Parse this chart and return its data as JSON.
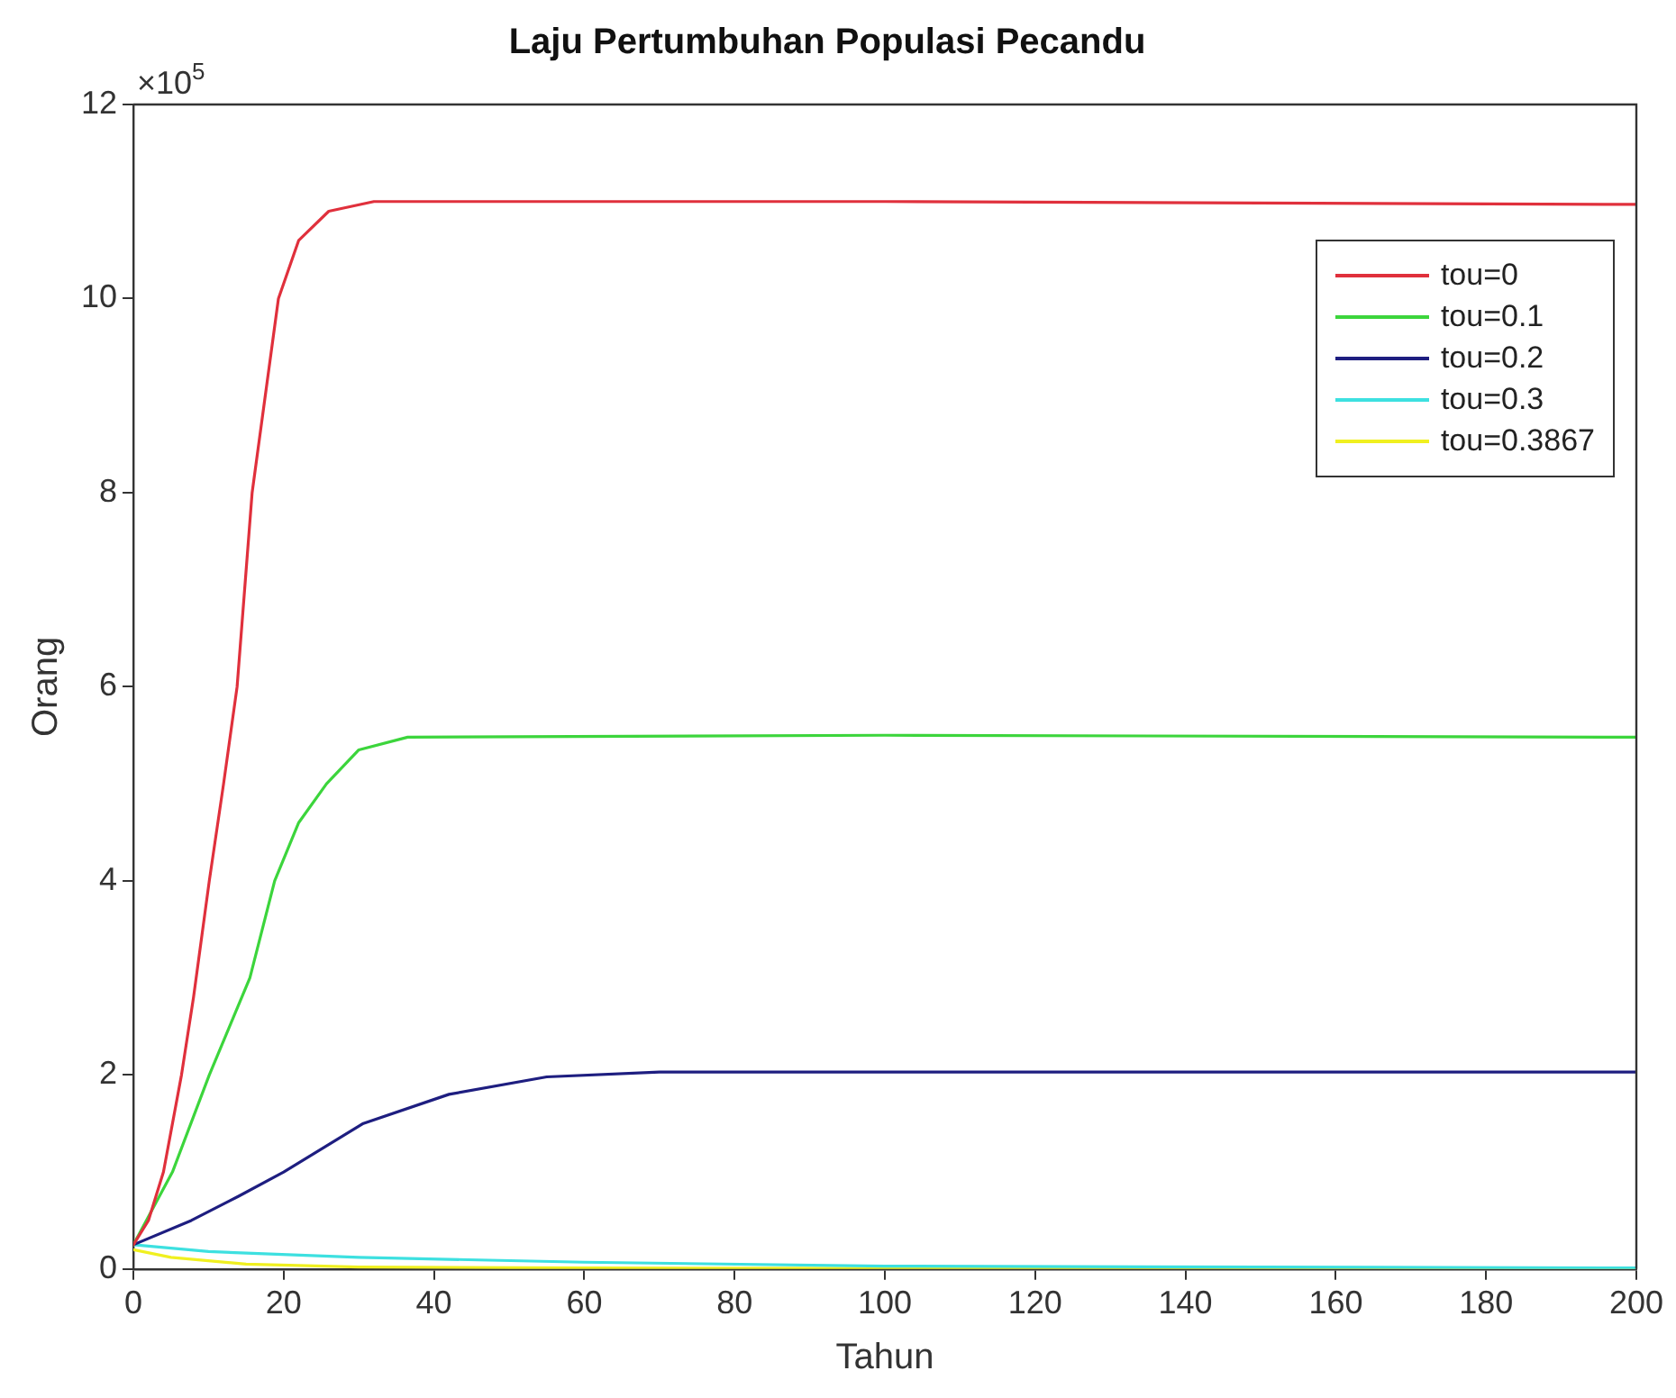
{
  "chart_data": {
    "type": "line",
    "title": "Laju Pertumbuhan Populasi Pecandu",
    "xlabel": "Tahun",
    "ylabel": "Orang",
    "annotations": [
      "×10$^{5}$"
    ],
    "xlim": [
      0,
      200
    ],
    "xticks": [
      0,
      20,
      40,
      60,
      80,
      100,
      120,
      140,
      160,
      180,
      200
    ],
    "ylim": [
      0,
      12
    ],
    "yticks": [
      0,
      2,
      4,
      6,
      8,
      10,
      12
    ],
    "grid": false,
    "legend": "top right",
    "marker": "none",
    "line_style": "solid",
    "series": [
      {
        "name": "tou=0",
        "color": "#e0303c",
        "x": [
          0,
          2,
          4,
          6.4,
          8,
          10.1,
          12,
          13.8,
          15.8,
          19.3,
          22,
          26,
          32,
          100,
          200
        ],
        "values": [
          0.25,
          0.5,
          1,
          2,
          2.8,
          4,
          5,
          6,
          8,
          10,
          10.6,
          10.9,
          11,
          11,
          10.97
        ]
      },
      {
        "name": "tou=0.1",
        "color": "#3cd53c",
        "x": [
          0,
          5.2,
          10.1,
          15.5,
          18.8,
          22,
          25.7,
          30,
          36.5,
          100,
          200
        ],
        "values": [
          0.25,
          1,
          2,
          3,
          4,
          4.6,
          5,
          5.35,
          5.48,
          5.5,
          5.48
        ]
      },
      {
        "name": "tou=0.2",
        "color": "#1e1e80",
        "x": [
          0,
          7.7,
          14,
          20,
          30.6,
          42,
          55,
          70,
          200
        ],
        "values": [
          0.25,
          0.5,
          0.75,
          1,
          1.5,
          1.8,
          1.98,
          2.03,
          2.03
        ]
      },
      {
        "name": "tou=0.3",
        "color": "#3de0e0",
        "x": [
          0,
          10,
          30,
          60,
          100,
          200
        ],
        "values": [
          0.25,
          0.18,
          0.12,
          0.07,
          0.03,
          0.01
        ]
      },
      {
        "name": "tou=0.3867",
        "color": "#f0f020",
        "x": [
          0,
          5,
          15,
          30,
          60,
          200
        ],
        "values": [
          0.2,
          0.12,
          0.05,
          0.02,
          0.01,
          0
        ]
      }
    ]
  }
}
